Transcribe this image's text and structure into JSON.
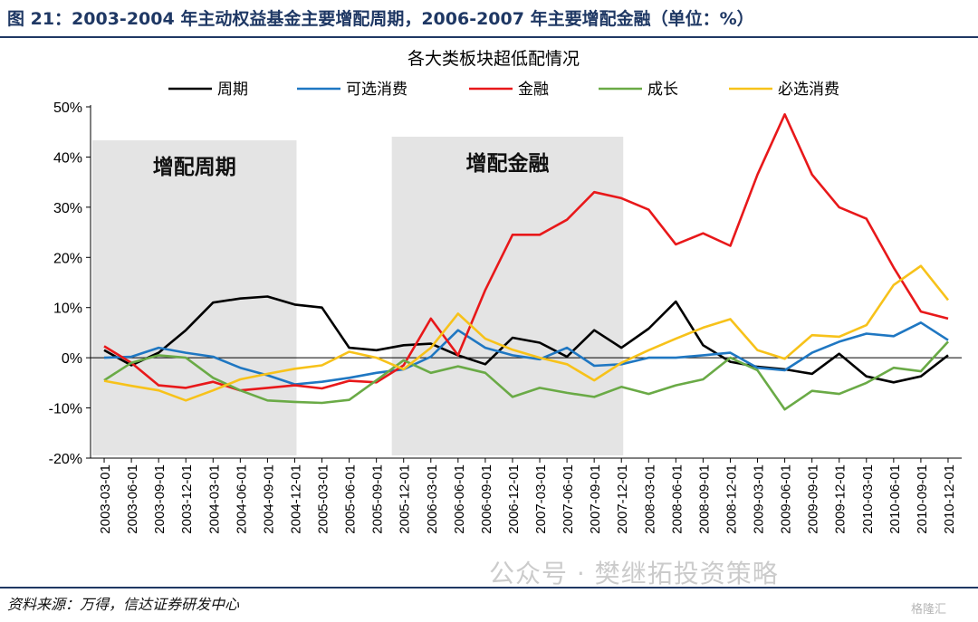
{
  "figure_title": "图 21：2003-2004 年主动权益基金主要增配周期，2006-2007 年主要增配金融（单位：%）",
  "source": "资料来源：万得，信达证券研发中心",
  "watermark": "公众号 · 樊继拓投资策略",
  "corner_mark": "格隆汇",
  "chart_data": {
    "type": "line",
    "title": "各大类板块超低配情况",
    "ylim": [
      -20,
      50
    ],
    "y_ticks": [
      -20,
      -10,
      0,
      10,
      20,
      30,
      40,
      50
    ],
    "y_tick_labels": [
      "-20%",
      "-10%",
      "0%",
      "10%",
      "20%",
      "30%",
      "40%",
      "50%"
    ],
    "x": [
      "2003-03-01",
      "2003-06-01",
      "2003-09-01",
      "2003-12-01",
      "2004-03-01",
      "2004-06-01",
      "2004-09-01",
      "2004-12-01",
      "2005-03-01",
      "2005-06-01",
      "2005-09-01",
      "2005-12-01",
      "2006-03-01",
      "2006-06-01",
      "2006-09-01",
      "2006-12-01",
      "2007-03-01",
      "2007-06-01",
      "2007-09-01",
      "2007-12-01",
      "2008-03-01",
      "2008-06-01",
      "2008-09-01",
      "2008-12-01",
      "2009-03-01",
      "2009-06-01",
      "2009-09-01",
      "2009-12-01",
      "2010-03-01",
      "2010-06-01",
      "2010-09-01",
      "2010-12-01"
    ],
    "legend_position": "top",
    "series": [
      {
        "name": "周期",
        "color": "#000000",
        "values": [
          1.5,
          -1.5,
          1.0,
          5.5,
          11.0,
          11.8,
          12.2,
          10.6,
          10.0,
          2.0,
          1.5,
          2.5,
          2.8,
          0.5,
          -1.3,
          4.0,
          3.0,
          0.2,
          5.5,
          2.0,
          5.8,
          11.2,
          2.5,
          -0.8,
          -1.8,
          -2.3,
          -3.2,
          0.8,
          -3.7,
          -4.9,
          -3.7,
          0.5
        ]
      },
      {
        "name": "可选消费",
        "color": "#1f77c2",
        "values": [
          0.0,
          0.2,
          2.0,
          1.0,
          0.2,
          -2.0,
          -3.5,
          -5.3,
          -4.8,
          -4.0,
          -3.0,
          -2.3,
          0.2,
          5.5,
          2.0,
          0.5,
          -0.3,
          2.0,
          -1.6,
          -1.3,
          0.0,
          0.0,
          0.5,
          1.0,
          -2.0,
          -2.5,
          1.0,
          3.2,
          4.8,
          4.3,
          7.0,
          3.5
        ]
      },
      {
        "name": "金融",
        "color": "#e8181a",
        "values": [
          2.3,
          -1.0,
          -5.5,
          -6.0,
          -4.8,
          -6.5,
          -6.0,
          -5.5,
          -6.1,
          -4.6,
          -4.9,
          -1.5,
          7.8,
          0.5,
          13.5,
          24.5,
          24.5,
          27.5,
          33.0,
          31.8,
          29.5,
          22.6,
          24.8,
          22.3,
          36.5,
          48.5,
          36.5,
          30.0,
          27.7,
          18.0,
          9.2,
          7.8
        ]
      },
      {
        "name": "成长",
        "color": "#6aaa46",
        "values": [
          -4.5,
          -1.0,
          0.5,
          0.0,
          -4.0,
          -6.5,
          -8.5,
          -8.8,
          -9.0,
          -8.4,
          -4.5,
          -0.5,
          -3.0,
          -1.7,
          -3.0,
          -7.8,
          -6.0,
          -7.0,
          -7.8,
          -5.8,
          -7.2,
          -5.5,
          -4.3,
          0.0,
          -2.5,
          -10.3,
          -6.6,
          -7.2,
          -5.0,
          -2.0,
          -2.7,
          3.2
        ]
      },
      {
        "name": "必选消费",
        "color": "#f7c21a",
        "values": [
          -4.6,
          -5.6,
          -6.5,
          -8.5,
          -6.5,
          -4.3,
          -3.2,
          -2.2,
          -1.5,
          1.2,
          0.0,
          -2.3,
          2.0,
          8.8,
          3.8,
          1.6,
          0.0,
          -1.3,
          -4.5,
          -1.0,
          1.5,
          3.8,
          6.0,
          7.7,
          1.5,
          -0.2,
          4.5,
          4.2,
          6.5,
          14.5,
          18.3,
          11.5
        ]
      }
    ],
    "highlight_regions": [
      {
        "label": "增配周期",
        "x_start": "2003-03-01",
        "x_end": "2004-12-01"
      },
      {
        "label": "增配金融",
        "x_start": "2005-12-01",
        "x_end": "2007-12-01"
      }
    ],
    "grid": false
  }
}
